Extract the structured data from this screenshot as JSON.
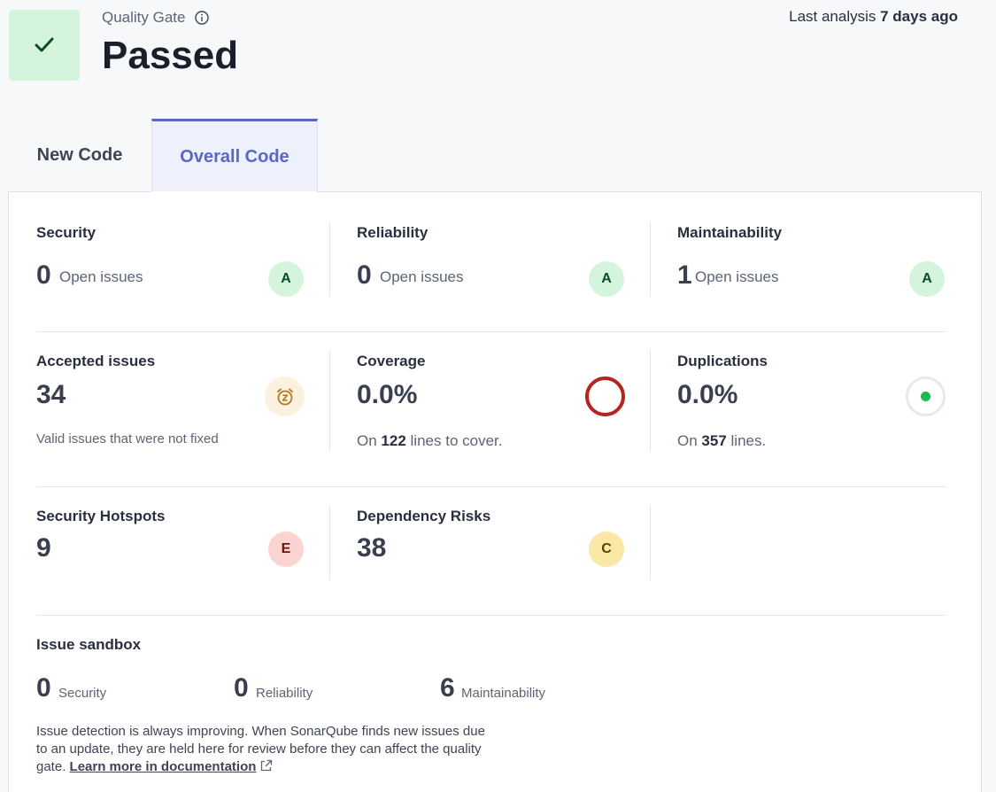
{
  "header": {
    "gate_label": "Quality Gate",
    "gate_status": "Passed",
    "last_analysis_prefix": "Last analysis",
    "last_analysis_value": "7 days ago"
  },
  "tabs": [
    {
      "label": "New Code",
      "active": false
    },
    {
      "label": "Overall Code",
      "active": true
    }
  ],
  "metrics": {
    "security": {
      "title": "Security",
      "value": "0",
      "unit": "Open issues",
      "rating": "A"
    },
    "reliability": {
      "title": "Reliability",
      "value": "0",
      "unit": "Open issues",
      "rating": "A"
    },
    "maintainability": {
      "title": "Maintainability",
      "value": "1",
      "unit": "Open issues",
      "rating": "A"
    },
    "accepted": {
      "title": "Accepted issues",
      "value": "34",
      "description": "Valid issues that were not fixed"
    },
    "coverage": {
      "title": "Coverage",
      "value": "0.0%",
      "detail_prefix": "On",
      "detail_value": "122",
      "detail_suffix": "lines to cover."
    },
    "duplications": {
      "title": "Duplications",
      "value": "0.0%",
      "detail_prefix": "On",
      "detail_value": "357",
      "detail_suffix": "lines."
    },
    "hotspots": {
      "title": "Security Hotspots",
      "value": "9",
      "rating": "E"
    },
    "dependency": {
      "title": "Dependency Risks",
      "value": "38",
      "rating": "C"
    }
  },
  "sandbox": {
    "title": "Issue sandbox",
    "items": [
      {
        "value": "0",
        "label": "Security"
      },
      {
        "value": "0",
        "label": "Reliability"
      },
      {
        "value": "6",
        "label": "Maintainability"
      }
    ],
    "note": "Issue detection is always improving. When SonarQube finds new issues due to an update, they are held here for review before they can affect the quality gate.",
    "link_label": "Learn more in documentation"
  },
  "colors": {
    "accent": "#5a68c4",
    "passed_bg": "#d4f5dc",
    "rating_a": "#d4f5dc",
    "rating_e": "#fbd3d1",
    "rating_c": "#fbe8a6",
    "coverage_ring": "#b3261e",
    "duplications_dot": "#1db954"
  },
  "icons": {
    "gate": "check-icon",
    "info": "info-icon",
    "accepted": "snooze-alarm-icon",
    "coverage": "coverage-ring-icon",
    "duplications": "duplications-dot-icon",
    "external": "external-link-icon"
  }
}
